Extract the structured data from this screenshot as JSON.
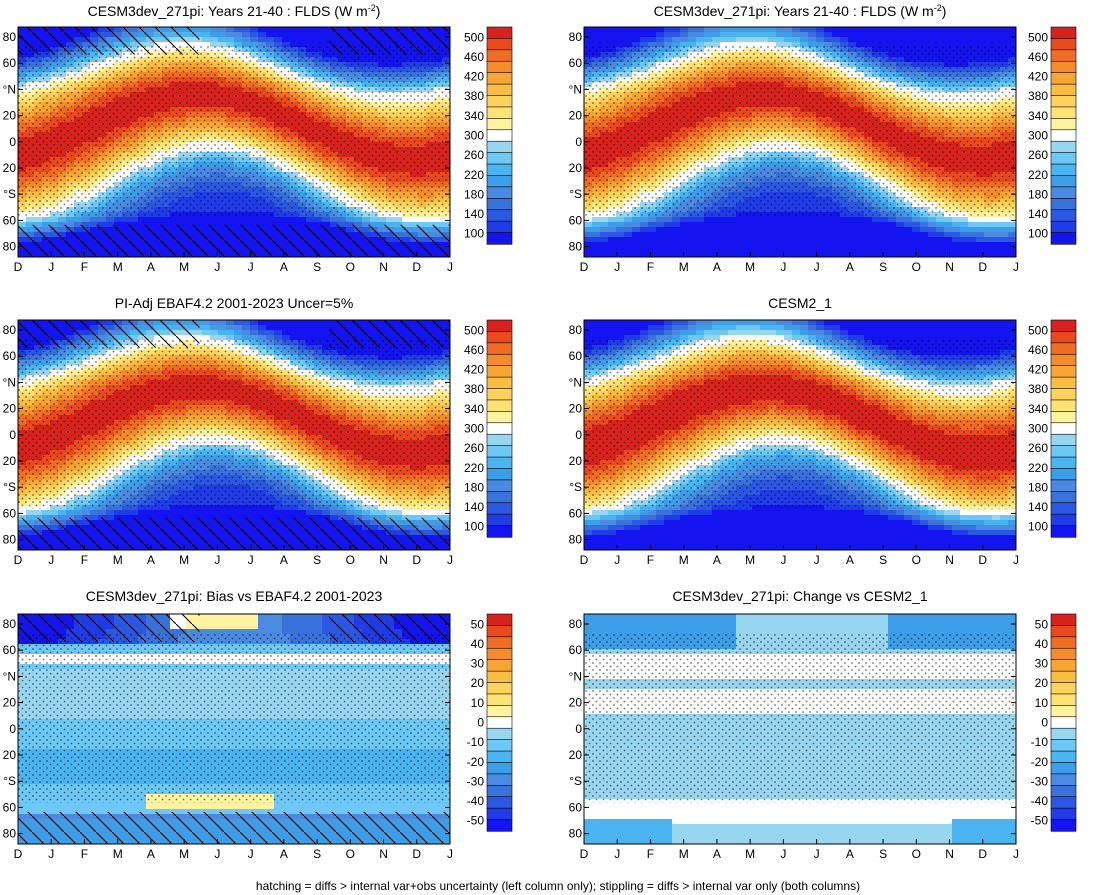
{
  "footer": "hatching = diffs > internal var+obs uncertainty (left column only); stippling = diffs > internal var only (both columns)",
  "palette": {
    "blues": [
      "#1414f0",
      "#1f3ce8",
      "#2b58e2",
      "#3a72dc",
      "#4a8ae0",
      "#3c9ee8",
      "#4ab4f0",
      "#6cc8f4",
      "#98d6f0"
    ],
    "white": "#ffffff",
    "warm": [
      "#fff3a0",
      "#fde374",
      "#fbd25c",
      "#f9bd44",
      "#f7a535",
      "#f48c2c",
      "#f06d24",
      "#ea4a1e",
      "#d8231c"
    ]
  },
  "chart_data": [
    {
      "type": "heatmap",
      "name": "panel-cesm3dev-flds",
      "title": "CESM3dev_271pi: Years 21-40 : FLDS (W m",
      "title_sup": "-2",
      "title_end": ")",
      "xlabels": [
        "D",
        "J",
        "F",
        "M",
        "A",
        "M",
        "J",
        "J",
        "A",
        "S",
        "O",
        "N",
        "D",
        "J"
      ],
      "ylabels": [
        "80",
        "60",
        "°N",
        "20",
        "0",
        "20",
        "°S",
        "60",
        "80"
      ],
      "ylim": [
        -90,
        90
      ],
      "levels": [
        100,
        120,
        140,
        160,
        180,
        200,
        220,
        240,
        260,
        280,
        300,
        320,
        340,
        360,
        380,
        400,
        420,
        440,
        460,
        480,
        500
      ],
      "colorbar_labels": [
        "500",
        "460",
        "420",
        "380",
        "340",
        "300",
        "260",
        "220",
        "180",
        "140",
        "100"
      ],
      "field": "abs",
      "hatch": true
    },
    {
      "type": "heatmap",
      "name": "panel-cesm3dev-flds-stipple",
      "title": "CESM3dev_271pi: Years 21-40 : FLDS (W m",
      "title_sup": "-2",
      "title_end": ")",
      "xlabels": [
        "D",
        "J",
        "F",
        "M",
        "A",
        "M",
        "J",
        "J",
        "A",
        "S",
        "O",
        "N",
        "D",
        "J"
      ],
      "ylabels": [
        "80",
        "60",
        "°N",
        "20",
        "0",
        "20",
        "°S",
        "60",
        "80"
      ],
      "ylim": [
        -90,
        90
      ],
      "levels": [
        100,
        120,
        140,
        160,
        180,
        200,
        220,
        240,
        260,
        280,
        300,
        320,
        340,
        360,
        380,
        400,
        420,
        440,
        460,
        480,
        500
      ],
      "colorbar_labels": [
        "500",
        "460",
        "420",
        "380",
        "340",
        "300",
        "260",
        "220",
        "180",
        "140",
        "100"
      ],
      "field": "abs",
      "hatch": false
    },
    {
      "type": "heatmap",
      "name": "panel-ebaf-obs",
      "title": "PI-Adj EBAF4.2 2001-2023 Uncer=5%",
      "xlabels": [
        "D",
        "J",
        "F",
        "M",
        "A",
        "M",
        "J",
        "J",
        "A",
        "S",
        "O",
        "N",
        "D",
        "J"
      ],
      "ylabels": [
        "80",
        "60",
        "°N",
        "20",
        "0",
        "20",
        "°S",
        "60",
        "80"
      ],
      "ylim": [
        -90,
        90
      ],
      "levels": [
        100,
        120,
        140,
        160,
        180,
        200,
        220,
        240,
        260,
        280,
        300,
        320,
        340,
        360,
        380,
        400,
        420,
        440,
        460,
        480,
        500
      ],
      "colorbar_labels": [
        "500",
        "460",
        "420",
        "380",
        "340",
        "300",
        "260",
        "220",
        "180",
        "140",
        "100"
      ],
      "field": "abs",
      "hatch": true
    },
    {
      "type": "heatmap",
      "name": "panel-cesm2-1",
      "title": "CESM2_1",
      "xlabels": [
        "D",
        "J",
        "F",
        "M",
        "A",
        "M",
        "J",
        "J",
        "A",
        "S",
        "O",
        "N",
        "D",
        "J"
      ],
      "ylabels": [
        "80",
        "60",
        "°N",
        "20",
        "0",
        "20",
        "°S",
        "60",
        "80"
      ],
      "ylim": [
        -90,
        90
      ],
      "levels": [
        100,
        120,
        140,
        160,
        180,
        200,
        220,
        240,
        260,
        280,
        300,
        320,
        340,
        360,
        380,
        400,
        420,
        440,
        460,
        480,
        500
      ],
      "colorbar_labels": [
        "500",
        "460",
        "420",
        "380",
        "340",
        "300",
        "260",
        "220",
        "180",
        "140",
        "100"
      ],
      "field": "abs2",
      "hatch": false
    },
    {
      "type": "heatmap",
      "name": "panel-bias-vs-ebaf",
      "title": "CESM3dev_271pi: Bias vs EBAF4.2 2001-2023",
      "xlabels": [
        "D",
        "J",
        "F",
        "M",
        "A",
        "M",
        "J",
        "J",
        "A",
        "S",
        "O",
        "N",
        "D",
        "J"
      ],
      "ylabels": [
        "80",
        "60",
        "°N",
        "20",
        "0",
        "20",
        "°S",
        "60",
        "80"
      ],
      "ylim": [
        -90,
        90
      ],
      "levels": [
        -50,
        -45,
        -40,
        -35,
        -30,
        -25,
        -20,
        -15,
        -10,
        -5,
        0,
        5,
        10,
        15,
        20,
        25,
        30,
        35,
        40,
        45,
        50
      ],
      "colorbar_labels": [
        "50",
        "40",
        "30",
        "20",
        "10",
        "0",
        "-10",
        "-20",
        "-30",
        "-40",
        "-50"
      ],
      "field": "bias",
      "hatch": true
    },
    {
      "type": "heatmap",
      "name": "panel-change-vs-cesm2",
      "title": "CESM3dev_271pi: Change vs CESM2_1",
      "xlabels": [
        "D",
        "J",
        "F",
        "M",
        "A",
        "M",
        "J",
        "J",
        "A",
        "S",
        "O",
        "N",
        "D",
        "J"
      ],
      "ylabels": [
        "80",
        "60",
        "°N",
        "20",
        "0",
        "20",
        "°S",
        "60",
        "80"
      ],
      "ylim": [
        -90,
        90
      ],
      "levels": [
        -50,
        -45,
        -40,
        -35,
        -30,
        -25,
        -20,
        -15,
        -10,
        -5,
        0,
        5,
        10,
        15,
        20,
        25,
        30,
        35,
        40,
        45,
        50
      ],
      "colorbar_labels": [
        "50",
        "40",
        "30",
        "20",
        "10",
        "0",
        "-10",
        "-20",
        "-30",
        "-40",
        "-50"
      ],
      "field": "change",
      "hatch": false
    }
  ]
}
